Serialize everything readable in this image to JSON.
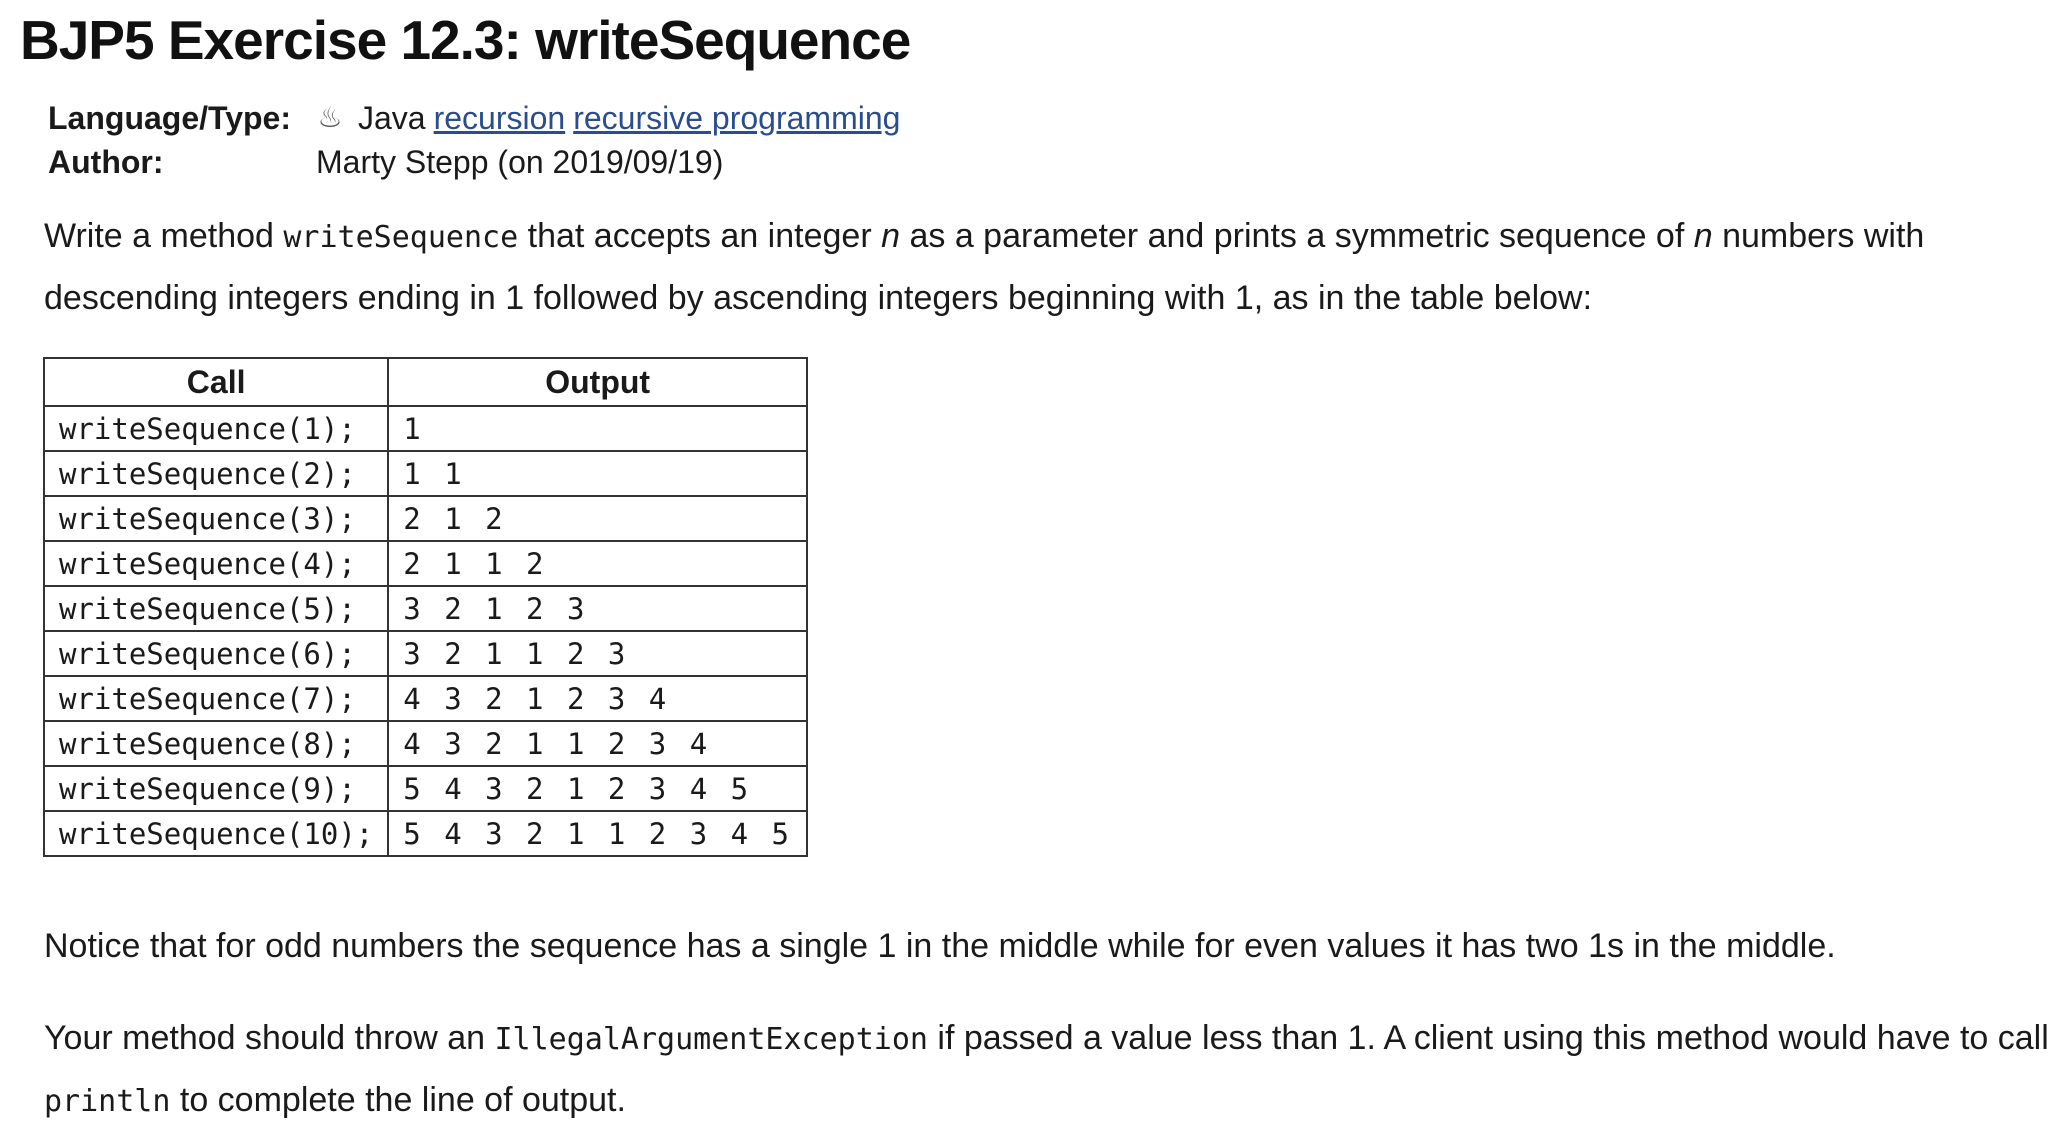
{
  "title": "BJP5 Exercise 12.3: writeSequence",
  "meta": {
    "language_label": "Language/Type:",
    "language_icon": "java-cup-icon",
    "language": "Java",
    "tags": [
      "recursion",
      "recursive programming"
    ],
    "author_label": "Author:",
    "author": "Marty Stepp (on 2019/09/19)"
  },
  "intro": {
    "p1": "Write a method ",
    "method": "writeSequence",
    "p2": " that accepts an integer ",
    "n1": "n",
    "p3": " as a parameter and prints a symmetric sequence of ",
    "n2": "n",
    "p4": " numbers with",
    "line2": "descending integers ending in 1 followed by ascending integers beginning with 1, as in the table below:"
  },
  "table": {
    "headers": [
      "Call",
      "Output"
    ],
    "rows": [
      {
        "call": "writeSequence(1);",
        "output": "1"
      },
      {
        "call": "writeSequence(2);",
        "output": "1 1"
      },
      {
        "call": "writeSequence(3);",
        "output": "2 1 2"
      },
      {
        "call": "writeSequence(4);",
        "output": "2 1 1 2"
      },
      {
        "call": "writeSequence(5);",
        "output": "3 2 1 2 3"
      },
      {
        "call": "writeSequence(6);",
        "output": "3 2 1 1 2 3"
      },
      {
        "call": "writeSequence(7);",
        "output": "4 3 2 1 2 3 4"
      },
      {
        "call": "writeSequence(8);",
        "output": "4 3 2 1 1 2 3 4"
      },
      {
        "call": "writeSequence(9);",
        "output": "5 4 3 2 1 2 3 4 5"
      },
      {
        "call": "writeSequence(10);",
        "output": "5 4 3 2 1 1 2 3 4 5"
      }
    ]
  },
  "notice": "Notice that for odd numbers the sequence has a single 1 in the middle while for even values it has two 1s in the middle.",
  "exception": {
    "p1": "Your method should throw an ",
    "class": "IllegalArgumentException",
    "p2": " if passed a value less than 1. A client using this method would have to call",
    "method": "println",
    "p3": " to complete the line of output."
  },
  "colors": {
    "link": "#2a4d8f",
    "text": "#1a1a1a",
    "border": "#333333"
  }
}
